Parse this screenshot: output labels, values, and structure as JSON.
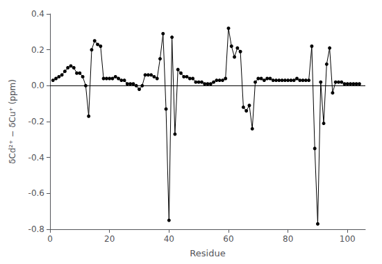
{
  "chart_data": {
    "type": "line",
    "x": [
      1,
      2,
      3,
      4,
      5,
      6,
      7,
      8,
      9,
      10,
      11,
      12,
      13,
      14,
      15,
      16,
      17,
      18,
      19,
      20,
      21,
      22,
      23,
      24,
      25,
      26,
      27,
      28,
      29,
      30,
      31,
      32,
      33,
      34,
      35,
      36,
      37,
      38,
      39,
      40,
      41,
      42,
      43,
      44,
      45,
      46,
      47,
      48,
      49,
      50,
      51,
      52,
      53,
      54,
      55,
      56,
      57,
      58,
      59,
      60,
      61,
      62,
      63,
      64,
      65,
      66,
      67,
      68,
      69,
      70,
      71,
      72,
      73,
      74,
      75,
      76,
      77,
      78,
      79,
      80,
      81,
      82,
      83,
      84,
      85,
      86,
      87,
      88,
      89,
      90,
      91,
      92,
      93,
      94,
      95,
      96,
      97,
      98,
      99,
      100,
      101,
      102,
      103,
      104
    ],
    "values": [
      0.03,
      0.04,
      0.05,
      0.06,
      0.08,
      0.1,
      0.11,
      0.1,
      0.07,
      0.07,
      0.05,
      0.0,
      -0.17,
      0.2,
      0.25,
      0.23,
      0.22,
      0.04,
      0.04,
      0.04,
      0.04,
      0.05,
      0.04,
      0.03,
      0.03,
      0.01,
      0.01,
      0.01,
      0.0,
      -0.02,
      0.0,
      0.06,
      0.06,
      0.06,
      0.05,
      0.04,
      0.15,
      0.29,
      -0.13,
      -0.75,
      0.27,
      -0.27,
      0.09,
      0.07,
      0.05,
      0.05,
      0.04,
      0.04,
      0.02,
      0.02,
      0.02,
      0.01,
      0.01,
      0.01,
      0.02,
      0.03,
      0.03,
      0.03,
      0.04,
      0.32,
      0.22,
      0.16,
      0.21,
      0.19,
      -0.12,
      -0.14,
      -0.11,
      -0.24,
      0.02,
      0.04,
      0.04,
      0.03,
      0.04,
      0.04,
      0.03,
      0.03,
      0.03,
      0.03,
      0.03,
      0.03,
      0.03,
      0.03,
      0.04,
      0.03,
      0.03,
      0.03,
      0.03,
      0.22,
      -0.35,
      -0.77,
      0.02,
      -0.21,
      0.12,
      0.21,
      -0.04,
      0.02,
      0.02,
      0.02,
      0.01,
      0.01,
      0.01,
      0.01,
      0.01,
      0.01
    ],
    "xlabel": "Residue",
    "ylabel": "δCd²⁺ − δCu⁺ (ppm)",
    "xlim": [
      0,
      106
    ],
    "ylim": [
      -0.8,
      0.4
    ],
    "xticks": [
      0,
      20,
      40,
      60,
      80,
      100
    ],
    "yticks": [
      -0.8,
      -0.6,
      -0.4,
      -0.2,
      {
        "value": 0,
        "label": "0.0"
      },
      0.2,
      0.4
    ],
    "color": "#000000",
    "marker": "circle",
    "grid": false
  }
}
